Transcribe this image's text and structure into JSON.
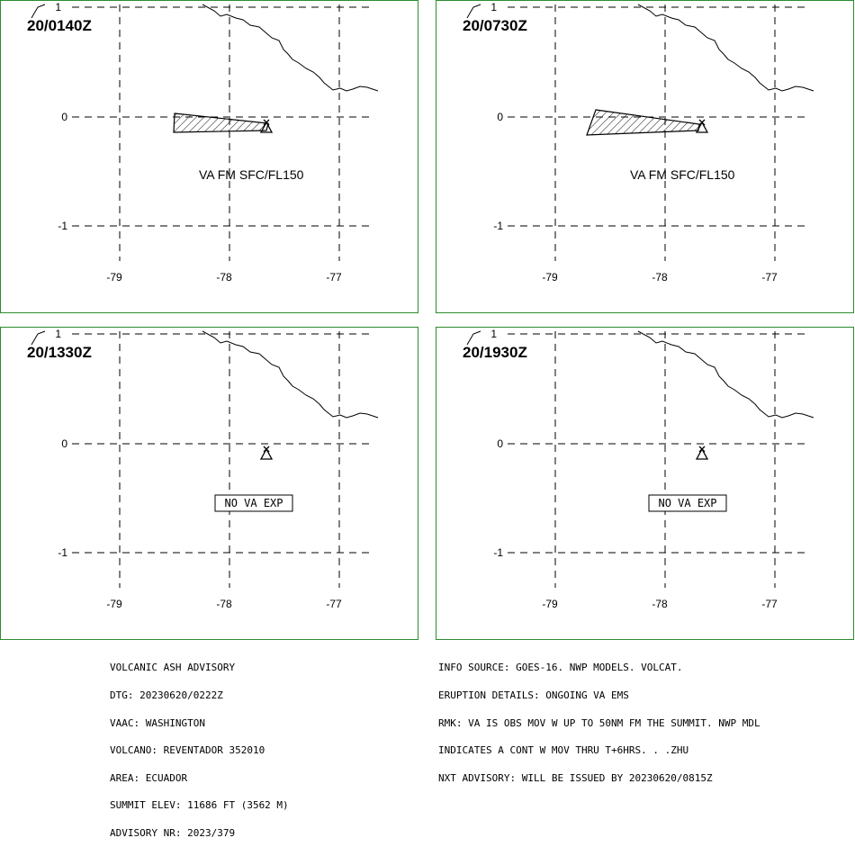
{
  "colors": {
    "frame": "#2e8b2e",
    "grid": "#000000",
    "ash": "#000000",
    "background": "#ffffff"
  },
  "panels": [
    {
      "time": "20/0140Z",
      "x_ticks": [
        "-79",
        "-78",
        "-77"
      ],
      "y_ticks": [
        "1",
        "0",
        "-1"
      ],
      "label": "VA FM SFC/FL150",
      "label_type": "plain"
    },
    {
      "time": "20/0730Z",
      "x_ticks": [
        "-79",
        "-78",
        "-77"
      ],
      "y_ticks": [
        "1",
        "0",
        "-1"
      ],
      "label": "VA FM SFC/FL150",
      "label_type": "plain"
    },
    {
      "time": "20/1330Z",
      "x_ticks": [
        "-79",
        "-78",
        "-77"
      ],
      "y_ticks": [
        "1",
        "0",
        "-1"
      ],
      "label": "NO VA EXP",
      "label_type": "boxed"
    },
    {
      "time": "20/1930Z",
      "x_ticks": [
        "-79",
        "-78",
        "-77"
      ],
      "y_ticks": [
        "1",
        "0",
        "-1"
      ],
      "label": "NO VA EXP",
      "label_type": "boxed"
    }
  ],
  "advisory_left": [
    "VOLCANIC ASH ADVISORY",
    "DTG: 20230620/0222Z",
    "VAAC: WASHINGTON",
    "VOLCANO: REVENTADOR 352010",
    "AREA: ECUADOR",
    "SUMMIT ELEV: 11686 FT (3562 M)",
    "ADVISORY NR: 2023/379"
  ],
  "advisory_right": [
    "INFO SOURCE: GOES-16. NWP MODELS. VOLCAT.",
    "ERUPTION DETAILS: ONGOING VA EMS",
    "RMK: VA IS OBS MOV W UP TO 50NM FM THE SUMMIT. NWP MDL",
    "INDICATES A CONT W MOV THRU T+6HRS. . .ZHU",
    "NXT ADVISORY: WILL BE ISSUED BY 20230620/0815Z"
  ]
}
